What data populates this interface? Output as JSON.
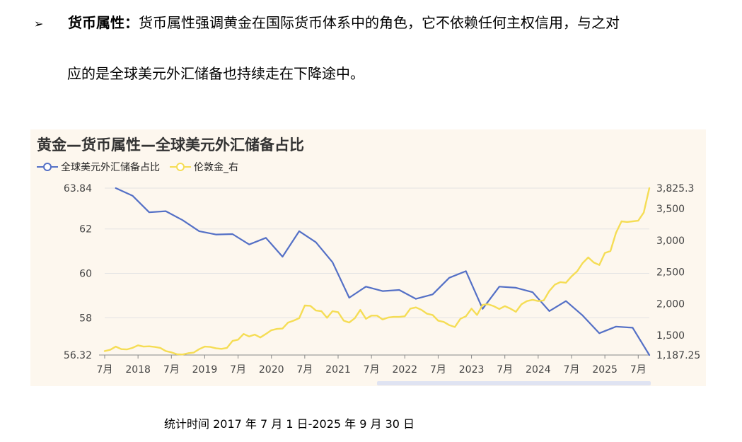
{
  "text": {
    "bullet_mark": "➢",
    "term": "货币属性：",
    "line1": "货币属性强调黄金在国际货币体系中的角色，它不依赖任何主权信用，与之对",
    "line2": "应的是全球美元外汇储备也持续走在下降途中。",
    "caption": "统计时间 2017 年 7 月 1 日-2025 年 9 月 30 日"
  },
  "chart_data": {
    "type": "line",
    "title": "黄金—货币属性—全球美元外汇储备占比",
    "legend_position": "top-left",
    "grid": "horizontal",
    "x_tick_labels": [
      "7月",
      "2018",
      "7月",
      "2019",
      "7月",
      "2020",
      "7月",
      "2021",
      "7月",
      "2022",
      "7月",
      "2023",
      "7月",
      "2024",
      "7月",
      "2025",
      "7月"
    ],
    "left_axis": {
      "ticks": [
        "63.84",
        "62",
        "60",
        "58",
        "56.32"
      ],
      "range": [
        56.32,
        63.84
      ]
    },
    "right_axis": {
      "ticks": [
        "3,825.3",
        "3,500",
        "3,000",
        "2,500",
        "2,000",
        "1,500",
        "1,187.25"
      ],
      "range": [
        1187.25,
        3825.3
      ]
    },
    "series": [
      {
        "name": "全球美元外汇储备占比",
        "axis": "left",
        "color": "#5470c6",
        "x": [
          "2017-Q3",
          "2017-Q4",
          "2018-Q1",
          "2018-Q2",
          "2018-Q3",
          "2018-Q4",
          "2019-Q1",
          "2019-Q2",
          "2019-Q3",
          "2019-Q4",
          "2020-Q1",
          "2020-Q2",
          "2020-Q3",
          "2020-Q4",
          "2021-Q1",
          "2021-Q2",
          "2021-Q3",
          "2021-Q4",
          "2022-Q1",
          "2022-Q2",
          "2022-Q3",
          "2022-Q4",
          "2023-Q1",
          "2023-Q2",
          "2023-Q3",
          "2023-Q4",
          "2024-Q1",
          "2024-Q2",
          "2024-Q3",
          "2024-Q4",
          "2025-Q1",
          "2025-Q2",
          "2025-Q3"
        ],
        "values": [
          63.84,
          63.5,
          62.75,
          62.8,
          62.4,
          61.9,
          61.75,
          61.77,
          61.3,
          61.6,
          60.75,
          61.9,
          61.4,
          60.5,
          58.9,
          59.4,
          59.2,
          59.25,
          58.85,
          59.05,
          59.8,
          60.1,
          58.4,
          59.4,
          59.35,
          59.15,
          58.3,
          58.75,
          58.1,
          57.3,
          57.6,
          57.55,
          56.32
        ]
      },
      {
        "name": "伦敦金_右",
        "axis": "right",
        "color": "#f5dd55",
        "x": [
          "2017-07",
          "2017-08",
          "2017-09",
          "2017-10",
          "2017-11",
          "2017-12",
          "2018-01",
          "2018-02",
          "2018-03",
          "2018-04",
          "2018-05",
          "2018-06",
          "2018-07",
          "2018-08",
          "2018-09",
          "2018-10",
          "2018-11",
          "2018-12",
          "2019-01",
          "2019-02",
          "2019-03",
          "2019-04",
          "2019-05",
          "2019-06",
          "2019-07",
          "2019-08",
          "2019-09",
          "2019-10",
          "2019-11",
          "2019-12",
          "2020-01",
          "2020-02",
          "2020-03",
          "2020-04",
          "2020-05",
          "2020-06",
          "2020-07",
          "2020-08",
          "2020-09",
          "2020-10",
          "2020-11",
          "2020-12",
          "2021-01",
          "2021-02",
          "2021-03",
          "2021-04",
          "2021-05",
          "2021-06",
          "2021-07",
          "2021-08",
          "2021-09",
          "2021-10",
          "2021-11",
          "2021-12",
          "2022-01",
          "2022-02",
          "2022-03",
          "2022-04",
          "2022-05",
          "2022-06",
          "2022-07",
          "2022-08",
          "2022-09",
          "2022-10",
          "2022-11",
          "2022-12",
          "2023-01",
          "2023-02",
          "2023-03",
          "2023-04",
          "2023-05",
          "2023-06",
          "2023-07",
          "2023-08",
          "2023-09",
          "2023-10",
          "2023-11",
          "2023-12",
          "2024-01",
          "2024-02",
          "2024-03",
          "2024-04",
          "2024-05",
          "2024-06",
          "2024-07",
          "2024-08",
          "2024-09",
          "2024-10",
          "2024-11",
          "2024-12",
          "2025-01",
          "2025-02",
          "2025-03",
          "2025-04",
          "2025-05",
          "2025-06",
          "2025-07",
          "2025-08",
          "2025-09"
        ],
        "values": [
          1250,
          1270,
          1320,
          1280,
          1275,
          1300,
          1340,
          1320,
          1325,
          1315,
          1300,
          1250,
          1230,
          1200,
          1195,
          1215,
          1225,
          1280,
          1320,
          1315,
          1295,
          1285,
          1300,
          1410,
          1430,
          1520,
          1480,
          1510,
          1465,
          1520,
          1580,
          1600,
          1605,
          1700,
          1730,
          1770,
          1970,
          1965,
          1890,
          1880,
          1775,
          1880,
          1865,
          1730,
          1700,
          1770,
          1900,
          1760,
          1810,
          1810,
          1750,
          1780,
          1790,
          1790,
          1800,
          1920,
          1940,
          1900,
          1840,
          1820,
          1730,
          1710,
          1660,
          1630,
          1760,
          1800,
          1920,
          1820,
          1980,
          1990,
          1960,
          1915,
          1960,
          1920,
          1870,
          1990,
          2040,
          2060,
          2040,
          2050,
          2200,
          2300,
          2340,
          2330,
          2430,
          2510,
          2640,
          2730,
          2650,
          2610,
          2800,
          2830,
          3120,
          3300,
          3290,
          3300,
          3310,
          3440,
          3825.3
        ]
      }
    ]
  }
}
